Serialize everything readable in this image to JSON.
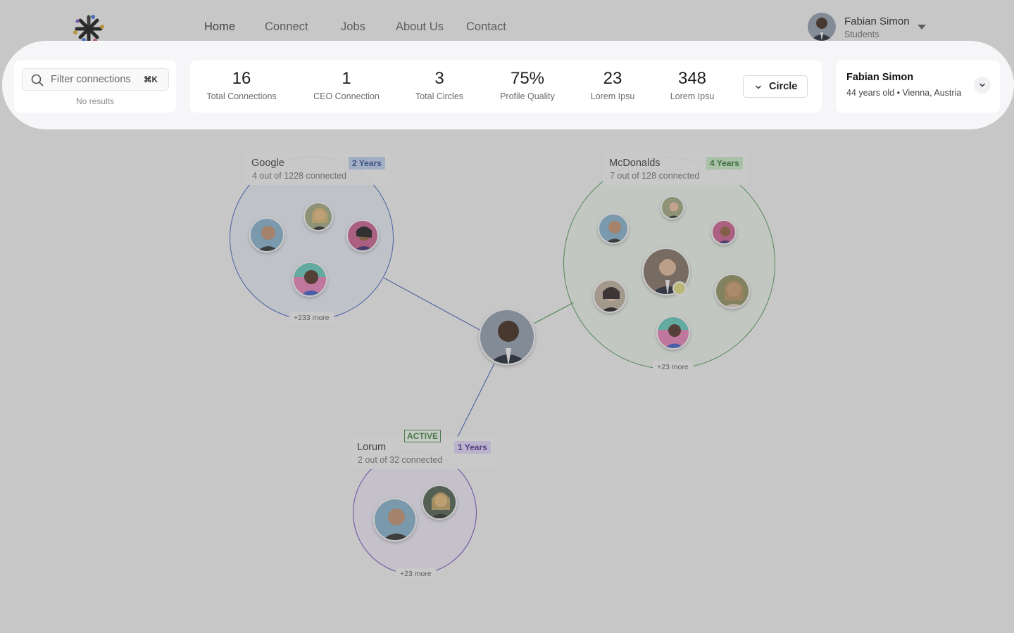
{
  "nav": {
    "items": [
      {
        "label": "Home"
      },
      {
        "label": "Connect"
      },
      {
        "label": "Jobs"
      },
      {
        "label": "About Us"
      },
      {
        "label": "Contact"
      }
    ]
  },
  "user": {
    "name": "Fabian Simon",
    "role": "Students"
  },
  "filter": {
    "placeholder": "Filter connections",
    "shortcut": "⌘K",
    "empty_text": "No results"
  },
  "stats": [
    {
      "value": "16",
      "label": "Total Connections"
    },
    {
      "value": "1",
      "label": "CEO Connection"
    },
    {
      "value": "3",
      "label": "Total Circles"
    },
    {
      "value": "75%",
      "label": "Profile Quality"
    },
    {
      "value": "23",
      "label": "Lorem Ipsu"
    },
    {
      "value": "348",
      "label": "Lorem Ipsu"
    }
  ],
  "view_select": {
    "label": "Circle"
  },
  "profile_card": {
    "name": "Fabian Simon",
    "meta": "44 years old • Vienna, Austria"
  },
  "groups": [
    {
      "name": "Google",
      "subtitle": "4 out of 1228 connected",
      "years": "2 Years",
      "more": "+233 more",
      "color": "#3b5bb8"
    },
    {
      "name": "McDonalds",
      "subtitle": "7 out of 128 connected",
      "years": "4 Years",
      "more": "+23 more",
      "color": "#4a8f4a"
    },
    {
      "name": "Lorum",
      "subtitle": "2 out of 32 connected",
      "years": "1 Years",
      "more": "+23 more",
      "active": "ACTIVE",
      "color": "#6a3fb0"
    }
  ],
  "icons": {
    "search": "search-icon",
    "caret": "caret-down-icon",
    "chevron": "chevron-down-icon",
    "logo": "starburst-logo"
  },
  "colors": {
    "background": "#e9e9ea",
    "highlight": "#f6f6f8",
    "google_badge": "#b8c7e6",
    "mcdonalds_badge": "#bfe0bf",
    "lorum_badge": "#d8ccf0"
  }
}
